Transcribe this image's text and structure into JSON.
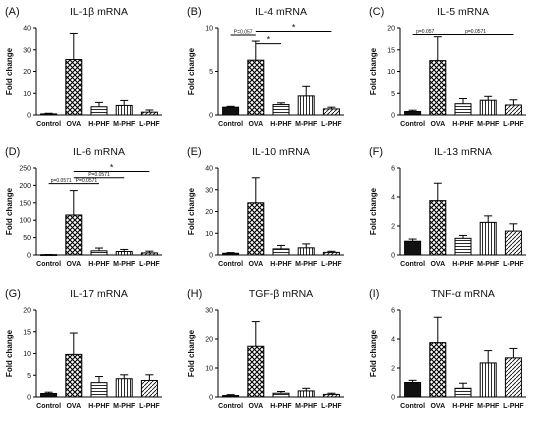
{
  "chart_data": [
    {
      "type": "bar",
      "panel_label": "(A)",
      "title": "IL-1β mRNA",
      "ylabel": "Fold change",
      "categories": [
        "Control",
        "OVA",
        "H-PHF",
        "M-PHF",
        "L-PHF"
      ],
      "values": [
        0.5,
        25.5,
        3.8,
        4.4,
        1.3
      ],
      "errors": [
        0.3,
        12,
        2,
        2.3,
        1
      ],
      "ylim": [
        0,
        40
      ],
      "yticks": [
        0,
        10,
        20,
        30,
        40
      ],
      "annotations": []
    },
    {
      "type": "bar",
      "panel_label": "(B)",
      "title": "IL-4 mRNA",
      "ylabel": "Fold change",
      "categories": [
        "Control",
        "OVA",
        "H-PHF",
        "M-PHF",
        "L-PHF"
      ],
      "values": [
        0.9,
        6.3,
        1.2,
        2.2,
        0.7
      ],
      "errors": [
        0.1,
        2.2,
        0.2,
        1.1,
        0.2
      ],
      "ylim": [
        0,
        10
      ],
      "yticks": [
        0,
        5,
        10
      ],
      "annotations": [
        {
          "from": 0,
          "to": 1,
          "y": 9.2,
          "text": "P=0.057"
        },
        {
          "from": 1,
          "to": 2,
          "y": 8.2,
          "text": "*"
        },
        {
          "from": 1,
          "to": 4,
          "y": 9.6,
          "text": "*"
        }
      ]
    },
    {
      "type": "bar",
      "panel_label": "(C)",
      "title": "IL-5 mRNA",
      "ylabel": "Fold change",
      "categories": [
        "Control",
        "OVA",
        "H-PHF",
        "M-PHF",
        "L-PHF"
      ],
      "values": [
        0.8,
        12.5,
        2.6,
        3.4,
        2.3
      ],
      "errors": [
        0.3,
        5.5,
        1.2,
        0.9,
        1.2
      ],
      "ylim": [
        0,
        20
      ],
      "yticks": [
        0,
        5,
        10,
        15,
        20
      ],
      "annotations": [
        {
          "from": 0,
          "to": 1,
          "y": 18.5,
          "text": "p=0.057"
        },
        {
          "from": 1,
          "to": 4,
          "y": 18.5,
          "text": "p=0.0571"
        }
      ]
    },
    {
      "type": "bar",
      "panel_label": "(D)",
      "title": "IL-6 mRNA",
      "ylabel": "Fold change",
      "categories": [
        "Control",
        "OVA",
        "H-PHF",
        "M-PHF",
        "L-PHF"
      ],
      "values": [
        1,
        115,
        12,
        10,
        6
      ],
      "errors": [
        0.5,
        70,
        8,
        6,
        5
      ],
      "ylim": [
        0,
        250
      ],
      "yticks": [
        0,
        50,
        100,
        150,
        200,
        250
      ],
      "annotations": [
        {
          "from": 0,
          "to": 1,
          "y": 205,
          "text": "p=0.0571"
        },
        {
          "from": 1,
          "to": 2,
          "y": 205,
          "text": "P=0.0571"
        },
        {
          "from": 1,
          "to": 3,
          "y": 222,
          "text": "P=0.0571"
        },
        {
          "from": 1,
          "to": 4,
          "y": 240,
          "text": "*"
        }
      ]
    },
    {
      "type": "bar",
      "panel_label": "(E)",
      "title": "IL-10 mRNA",
      "ylabel": "Fold change",
      "categories": [
        "Control",
        "OVA",
        "H-PHF",
        "M-PHF",
        "L-PHF"
      ],
      "values": [
        0.8,
        24,
        2.8,
        3.3,
        1.2
      ],
      "errors": [
        0.3,
        11.5,
        1.6,
        1.8,
        0.5
      ],
      "ylim": [
        0,
        40
      ],
      "yticks": [
        0,
        10,
        20,
        30,
        40
      ],
      "annotations": []
    },
    {
      "type": "bar",
      "panel_label": "(F)",
      "title": "IL-13 mRNA",
      "ylabel": "Fold change",
      "categories": [
        "Control",
        "OVA",
        "H-PHF",
        "M-PHF",
        "L-PHF"
      ],
      "values": [
        0.95,
        3.75,
        1.15,
        2.25,
        1.65
      ],
      "errors": [
        0.15,
        1.2,
        0.2,
        0.45,
        0.5
      ],
      "ylim": [
        0,
        6
      ],
      "yticks": [
        0,
        2,
        4,
        6
      ],
      "annotations": []
    },
    {
      "type": "bar",
      "panel_label": "(G)",
      "title": "IL-17 mRNA",
      "ylabel": "Fold change",
      "categories": [
        "Control",
        "OVA",
        "H-PHF",
        "M-PHF",
        "L-PHF"
      ],
      "values": [
        0.8,
        9.8,
        3.3,
        4.2,
        3.8
      ],
      "errors": [
        0.3,
        4.9,
        1.4,
        0.9,
        1.3
      ],
      "ylim": [
        0,
        20
      ],
      "yticks": [
        0,
        5,
        10,
        15,
        20
      ],
      "annotations": []
    },
    {
      "type": "bar",
      "panel_label": "(H)",
      "title": "TGF-β mRNA",
      "ylabel": "Fold change",
      "categories": [
        "Control",
        "OVA",
        "H-PHF",
        "M-PHF",
        "L-PHF"
      ],
      "values": [
        0.5,
        17.5,
        1.3,
        2.1,
        0.9
      ],
      "errors": [
        0.3,
        8.5,
        0.6,
        0.9,
        0.4
      ],
      "ylim": [
        0,
        30
      ],
      "yticks": [
        0,
        10,
        20,
        30
      ],
      "annotations": []
    },
    {
      "type": "bar",
      "panel_label": "(I)",
      "title": "TNF-α mRNA",
      "ylabel": "Fold change",
      "categories": [
        "Control",
        "OVA",
        "H-PHF",
        "M-PHF",
        "L-PHF"
      ],
      "values": [
        1,
        3.75,
        0.6,
        2.35,
        2.7
      ],
      "errors": [
        0.15,
        1.75,
        0.35,
        0.85,
        0.65
      ],
      "ylim": [
        0,
        6
      ],
      "yticks": [
        0,
        2,
        4,
        6
      ],
      "annotations": []
    }
  ]
}
